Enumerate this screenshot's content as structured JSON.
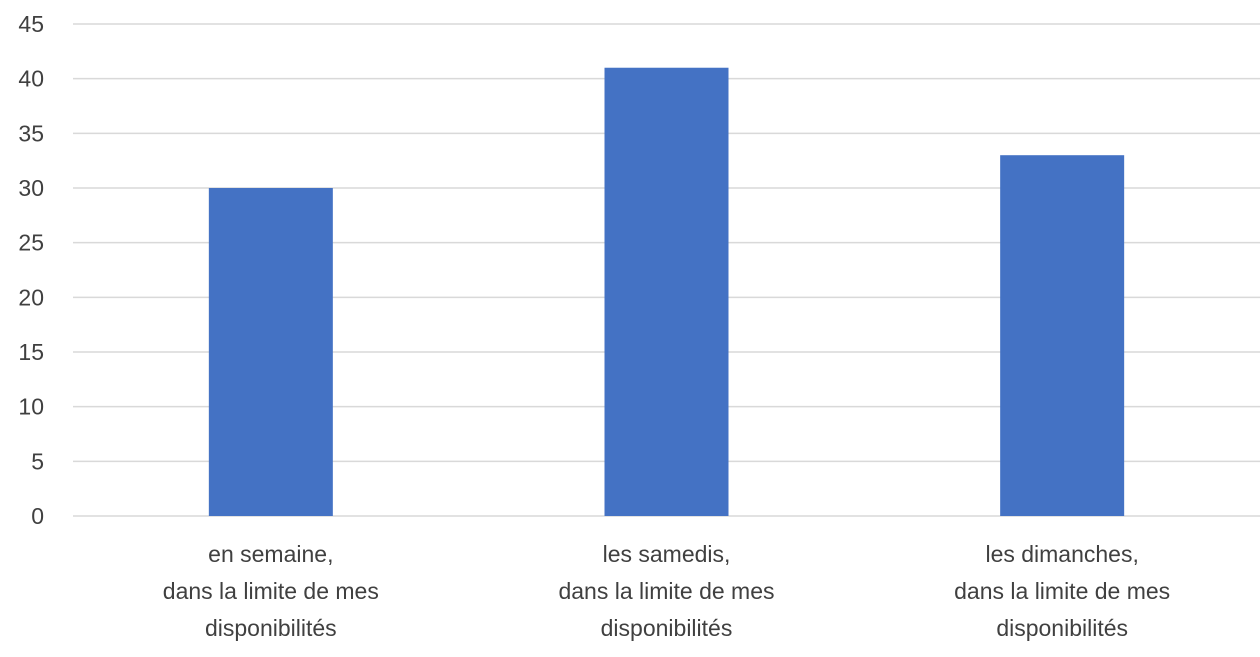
{
  "chart_data": {
    "type": "bar",
    "categories": [
      [
        "en semaine,",
        "dans la limite de mes",
        "disponibilités"
      ],
      [
        "les samedis,",
        "dans la limite de mes",
        "disponibilités"
      ],
      [
        "les dimanches,",
        "dans la limite de mes",
        "disponibilités"
      ]
    ],
    "values": [
      30,
      41,
      33
    ],
    "ylim": [
      0,
      45
    ],
    "yticks": [
      0,
      5,
      10,
      15,
      20,
      25,
      30,
      35,
      40,
      45
    ],
    "grid": true,
    "legend": "none",
    "colors": {
      "bar": "#4472C4",
      "grid": "#D9D9D9",
      "text": "#404040"
    }
  }
}
